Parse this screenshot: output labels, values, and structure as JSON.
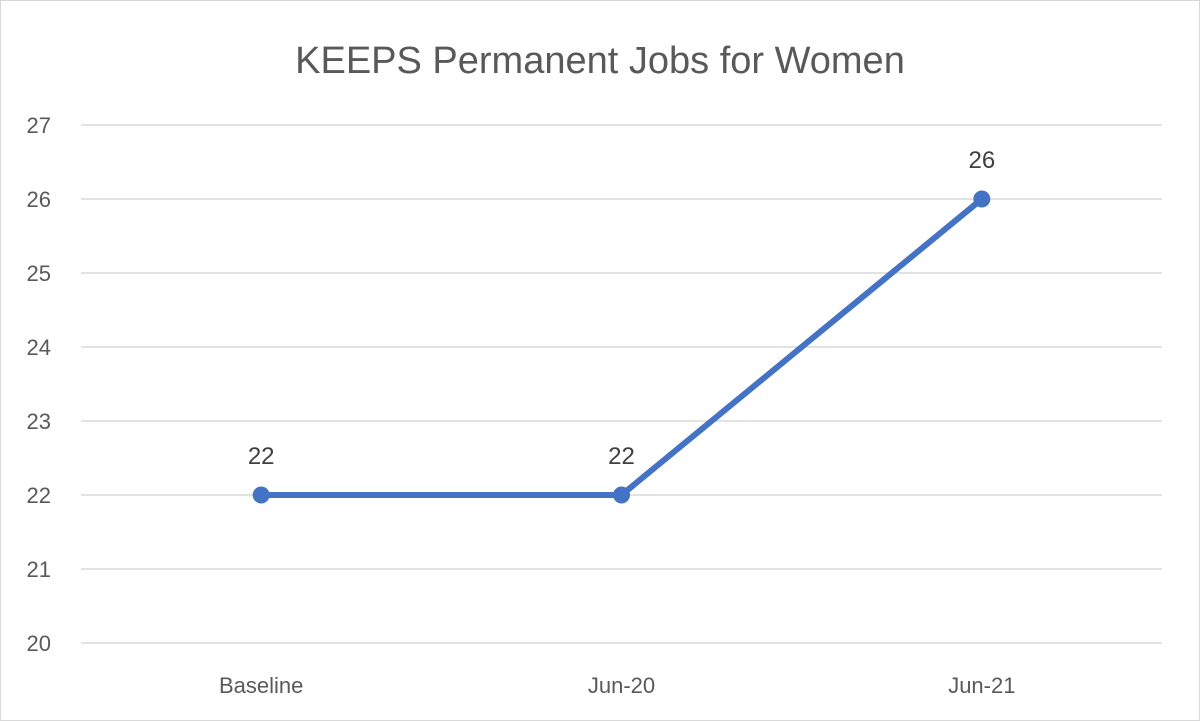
{
  "chart_data": {
    "type": "line",
    "title": "KEEPS Permanent Jobs for Women",
    "xlabel": "",
    "ylabel": "",
    "categories": [
      "Baseline",
      "Jun-20",
      "Jun-21"
    ],
    "series": [
      {
        "values": [
          22,
          22,
          26
        ]
      }
    ],
    "ylim": [
      20,
      27
    ],
    "yticks": [
      20,
      21,
      22,
      23,
      24,
      25,
      26,
      27
    ],
    "data_labels": [
      "22",
      "22",
      "26"
    ],
    "grid": true,
    "legend": "none",
    "colors": {
      "line": "#4472C4",
      "grid": "#d9d9d9",
      "text": "#595959",
      "label": "#404040"
    }
  }
}
